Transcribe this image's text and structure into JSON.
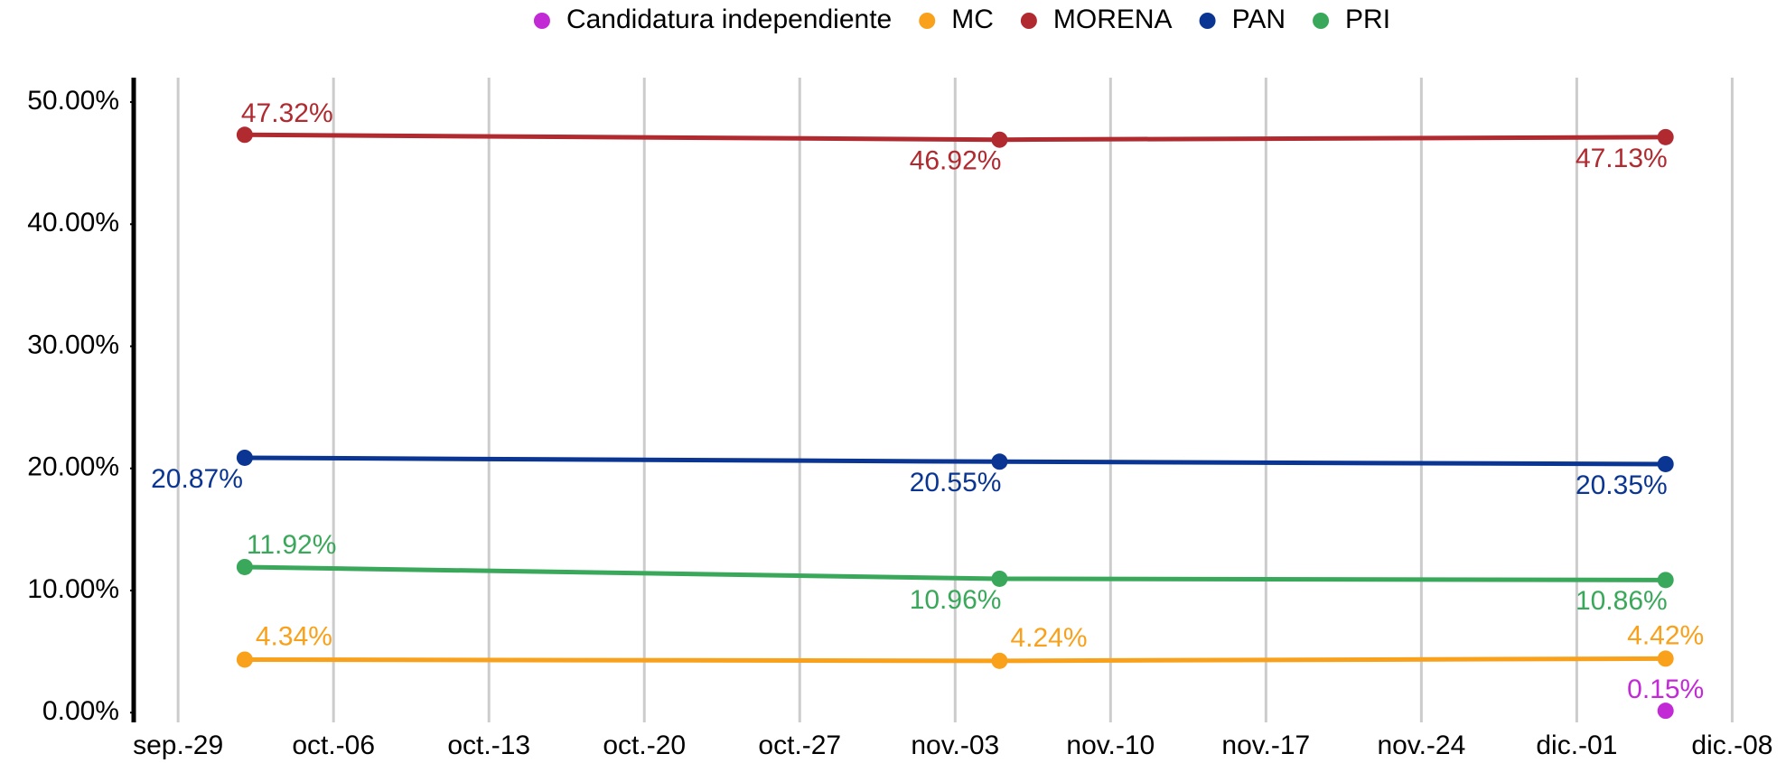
{
  "chart_data": {
    "type": "line",
    "x": [
      "oct.-02",
      "nov.-05",
      "dic.-05"
    ],
    "xlim": [
      "sep.-27",
      "dic.-09"
    ],
    "xticks": [
      "sep.-29",
      "oct.-06",
      "oct.-13",
      "oct.-20",
      "oct.-27",
      "nov.-03",
      "nov.-10",
      "nov.-17",
      "nov.-24",
      "dic.-01",
      "dic.-08"
    ],
    "ylim": [
      -0.8,
      52
    ],
    "yticks": [
      {
        "value": 0,
        "label": "0.00%"
      },
      {
        "value": 10,
        "label": "10.00%"
      },
      {
        "value": 20,
        "label": "20.00%"
      },
      {
        "value": 30,
        "label": "30.00%"
      },
      {
        "value": 40,
        "label": "40.00%"
      },
      {
        "value": 50,
        "label": "50.00%"
      }
    ],
    "grid": true,
    "legend": "top",
    "series": [
      {
        "name": "Candidatura independiente",
        "color": "#c22ad6",
        "values": [
          null,
          null,
          0.15
        ],
        "value_labels": [
          null,
          null,
          "0.15%"
        ]
      },
      {
        "name": "MC",
        "color": "#f9a11b",
        "values": [
          4.34,
          4.24,
          4.42
        ],
        "value_labels": [
          "4.34%",
          "4.24%",
          "4.42%"
        ]
      },
      {
        "name": "MORENA",
        "color": "#b02a30",
        "values": [
          47.32,
          46.92,
          47.13
        ],
        "value_labels": [
          "47.32%",
          "46.92%",
          "47.13%"
        ]
      },
      {
        "name": "PAN",
        "color": "#0a3592",
        "values": [
          20.87,
          20.55,
          20.35
        ],
        "value_labels": [
          "20.87%",
          "20.55%",
          "20.35%"
        ]
      },
      {
        "name": "PRI",
        "color": "#3aa85a",
        "values": [
          11.92,
          10.96,
          10.86
        ],
        "value_labels": [
          "11.92%",
          "10.96%",
          "10.86%"
        ]
      }
    ]
  }
}
